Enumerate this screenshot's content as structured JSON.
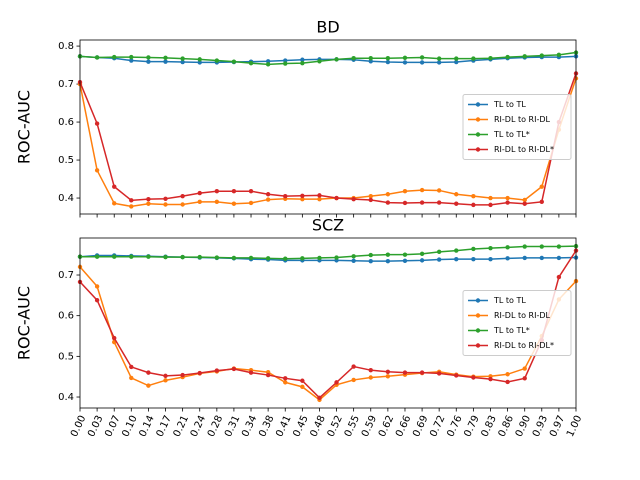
{
  "chart_data": [
    {
      "type": "line",
      "title": "BD",
      "y_label": "ROC-AUC",
      "x": [
        0,
        0.0345,
        0.069,
        0.1034,
        0.1379,
        0.1724,
        0.2069,
        0.2414,
        0.2759,
        0.3103,
        0.3448,
        0.3793,
        0.4138,
        0.4483,
        0.4828,
        0.5172,
        0.5517,
        0.5862,
        0.6207,
        0.6552,
        0.6897,
        0.7241,
        0.7586,
        0.7931,
        0.8276,
        0.8621,
        0.8966,
        0.931,
        0.9655,
        1
      ],
      "xlim": [
        0,
        1
      ],
      "xticks": [
        0,
        0.0345,
        0.069,
        0.1034,
        0.1379,
        0.1724,
        0.2069,
        0.2414,
        0.2759,
        0.3103,
        0.3448,
        0.3793,
        0.4138,
        0.4483,
        0.4828,
        0.5172,
        0.5517,
        0.5862,
        0.6207,
        0.6552,
        0.6897,
        0.7241,
        0.7586,
        0.7931,
        0.8276,
        0.8621,
        0.8966,
        0.931,
        0.9655,
        1
      ],
      "ylim": [
        0.358,
        0.816
      ],
      "yticks": [
        0.4,
        0.5,
        0.6,
        0.7,
        0.8
      ],
      "legend": "center right",
      "series": [
        {
          "name": "TL to TL",
          "color": "#1f77b4",
          "values": [
            0.773,
            0.77,
            0.768,
            0.762,
            0.759,
            0.759,
            0.758,
            0.757,
            0.757,
            0.758,
            0.759,
            0.76,
            0.762,
            0.764,
            0.765,
            0.765,
            0.764,
            0.76,
            0.758,
            0.757,
            0.757,
            0.757,
            0.758,
            0.762,
            0.765,
            0.768,
            0.77,
            0.771,
            0.771,
            0.773
          ]
        },
        {
          "name": "RI-DL to RI-DL",
          "color": "#ff7f0e",
          "values": [
            0.7,
            0.473,
            0.386,
            0.378,
            0.385,
            0.383,
            0.383,
            0.39,
            0.39,
            0.385,
            0.387,
            0.396,
            0.398,
            0.397,
            0.397,
            0.4,
            0.4,
            0.405,
            0.41,
            0.418,
            0.421,
            0.42,
            0.41,
            0.405,
            0.4,
            0.4,
            0.395,
            0.43,
            0.58,
            0.715
          ]
        },
        {
          "name": "TL to TL*",
          "color": "#2ca02c",
          "values": [
            0.773,
            0.77,
            0.771,
            0.771,
            0.77,
            0.769,
            0.767,
            0.765,
            0.762,
            0.759,
            0.755,
            0.752,
            0.754,
            0.755,
            0.76,
            0.765,
            0.768,
            0.768,
            0.768,
            0.769,
            0.77,
            0.767,
            0.767,
            0.767,
            0.768,
            0.771,
            0.773,
            0.775,
            0.777,
            0.783
          ]
        },
        {
          "name": "RI-DL to RI-DL*",
          "color": "#d62728",
          "values": [
            0.705,
            0.596,
            0.43,
            0.394,
            0.397,
            0.398,
            0.405,
            0.413,
            0.418,
            0.418,
            0.418,
            0.41,
            0.405,
            0.406,
            0.407,
            0.4,
            0.397,
            0.395,
            0.388,
            0.387,
            0.388,
            0.388,
            0.385,
            0.382,
            0.382,
            0.388,
            0.385,
            0.39,
            0.6,
            0.728
          ]
        }
      ]
    },
    {
      "type": "line",
      "title": "SCZ",
      "y_label": "ROC-AUC",
      "x": [
        0,
        0.0345,
        0.069,
        0.1034,
        0.1379,
        0.1724,
        0.2069,
        0.2414,
        0.2759,
        0.3103,
        0.3448,
        0.3793,
        0.4138,
        0.4483,
        0.4828,
        0.5172,
        0.5517,
        0.5862,
        0.6207,
        0.6552,
        0.6897,
        0.7241,
        0.7586,
        0.7931,
        0.8276,
        0.8621,
        0.8966,
        0.931,
        0.9655,
        1
      ],
      "xlim": [
        0,
        1
      ],
      "xticks": [
        {
          "value": 0,
          "label": "0.00"
        },
        {
          "value": 0.0345,
          "label": "0.03"
        },
        {
          "value": 0.069,
          "label": "0.07"
        },
        {
          "value": 0.1034,
          "label": "0.10"
        },
        {
          "value": 0.1379,
          "label": "0.14"
        },
        {
          "value": 0.1724,
          "label": "0.17"
        },
        {
          "value": 0.2069,
          "label": "0.21"
        },
        {
          "value": 0.2414,
          "label": "0.24"
        },
        {
          "value": 0.2759,
          "label": "0.28"
        },
        {
          "value": 0.3103,
          "label": "0.31"
        },
        {
          "value": 0.3448,
          "label": "0.34"
        },
        {
          "value": 0.3793,
          "label": "0.38"
        },
        {
          "value": 0.4138,
          "label": "0.41"
        },
        {
          "value": 0.4483,
          "label": "0.45"
        },
        {
          "value": 0.4828,
          "label": "0.48"
        },
        {
          "value": 0.5172,
          "label": "0.52"
        },
        {
          "value": 0.5517,
          "label": "0.55"
        },
        {
          "value": 0.5862,
          "label": "0.59"
        },
        {
          "value": 0.6207,
          "label": "0.62"
        },
        {
          "value": 0.6552,
          "label": "0.66"
        },
        {
          "value": 0.6897,
          "label": "0.69"
        },
        {
          "value": 0.7241,
          "label": "0.72"
        },
        {
          "value": 0.7586,
          "label": "0.76"
        },
        {
          "value": 0.7931,
          "label": "0.79"
        },
        {
          "value": 0.8276,
          "label": "0.83"
        },
        {
          "value": 0.8621,
          "label": "0.86"
        },
        {
          "value": 0.8966,
          "label": "0.90"
        },
        {
          "value": 0.931,
          "label": "0.93"
        },
        {
          "value": 0.9655,
          "label": "0.97"
        },
        {
          "value": 1,
          "label": "1.00"
        }
      ],
      "ylim": [
        0.373,
        0.791
      ],
      "yticks": [
        0.4,
        0.5,
        0.6,
        0.7
      ],
      "legend": "center right",
      "series": [
        {
          "name": "TL to TL",
          "color": "#1f77b4",
          "values": [
            0.745,
            0.748,
            0.748,
            0.747,
            0.746,
            0.745,
            0.744,
            0.743,
            0.742,
            0.741,
            0.739,
            0.738,
            0.736,
            0.736,
            0.736,
            0.736,
            0.735,
            0.734,
            0.734,
            0.735,
            0.736,
            0.738,
            0.739,
            0.739,
            0.739,
            0.741,
            0.742,
            0.742,
            0.742,
            0.743
          ]
        },
        {
          "name": "RI-DL to RI-DL",
          "color": "#ff7f0e",
          "values": [
            0.72,
            0.672,
            0.535,
            0.447,
            0.428,
            0.441,
            0.449,
            0.458,
            0.463,
            0.47,
            0.466,
            0.461,
            0.436,
            0.425,
            0.393,
            0.43,
            0.442,
            0.448,
            0.451,
            0.455,
            0.459,
            0.462,
            0.455,
            0.45,
            0.451,
            0.456,
            0.47,
            0.55,
            0.64,
            0.685
          ]
        },
        {
          "name": "TL to TL*",
          "color": "#2ca02c",
          "values": [
            0.745,
            0.745,
            0.745,
            0.745,
            0.745,
            0.744,
            0.744,
            0.744,
            0.743,
            0.742,
            0.742,
            0.741,
            0.74,
            0.741,
            0.742,
            0.743,
            0.746,
            0.749,
            0.75,
            0.75,
            0.752,
            0.757,
            0.76,
            0.764,
            0.766,
            0.768,
            0.77,
            0.77,
            0.77,
            0.771
          ]
        },
        {
          "name": "RI-DL to RI-DL*",
          "color": "#d62728",
          "values": [
            0.683,
            0.638,
            0.545,
            0.474,
            0.46,
            0.452,
            0.454,
            0.459,
            0.465,
            0.469,
            0.46,
            0.454,
            0.446,
            0.44,
            0.398,
            0.436,
            0.475,
            0.466,
            0.462,
            0.46,
            0.46,
            0.458,
            0.453,
            0.448,
            0.444,
            0.437,
            0.446,
            0.54,
            0.695,
            0.76
          ]
        }
      ]
    }
  ]
}
